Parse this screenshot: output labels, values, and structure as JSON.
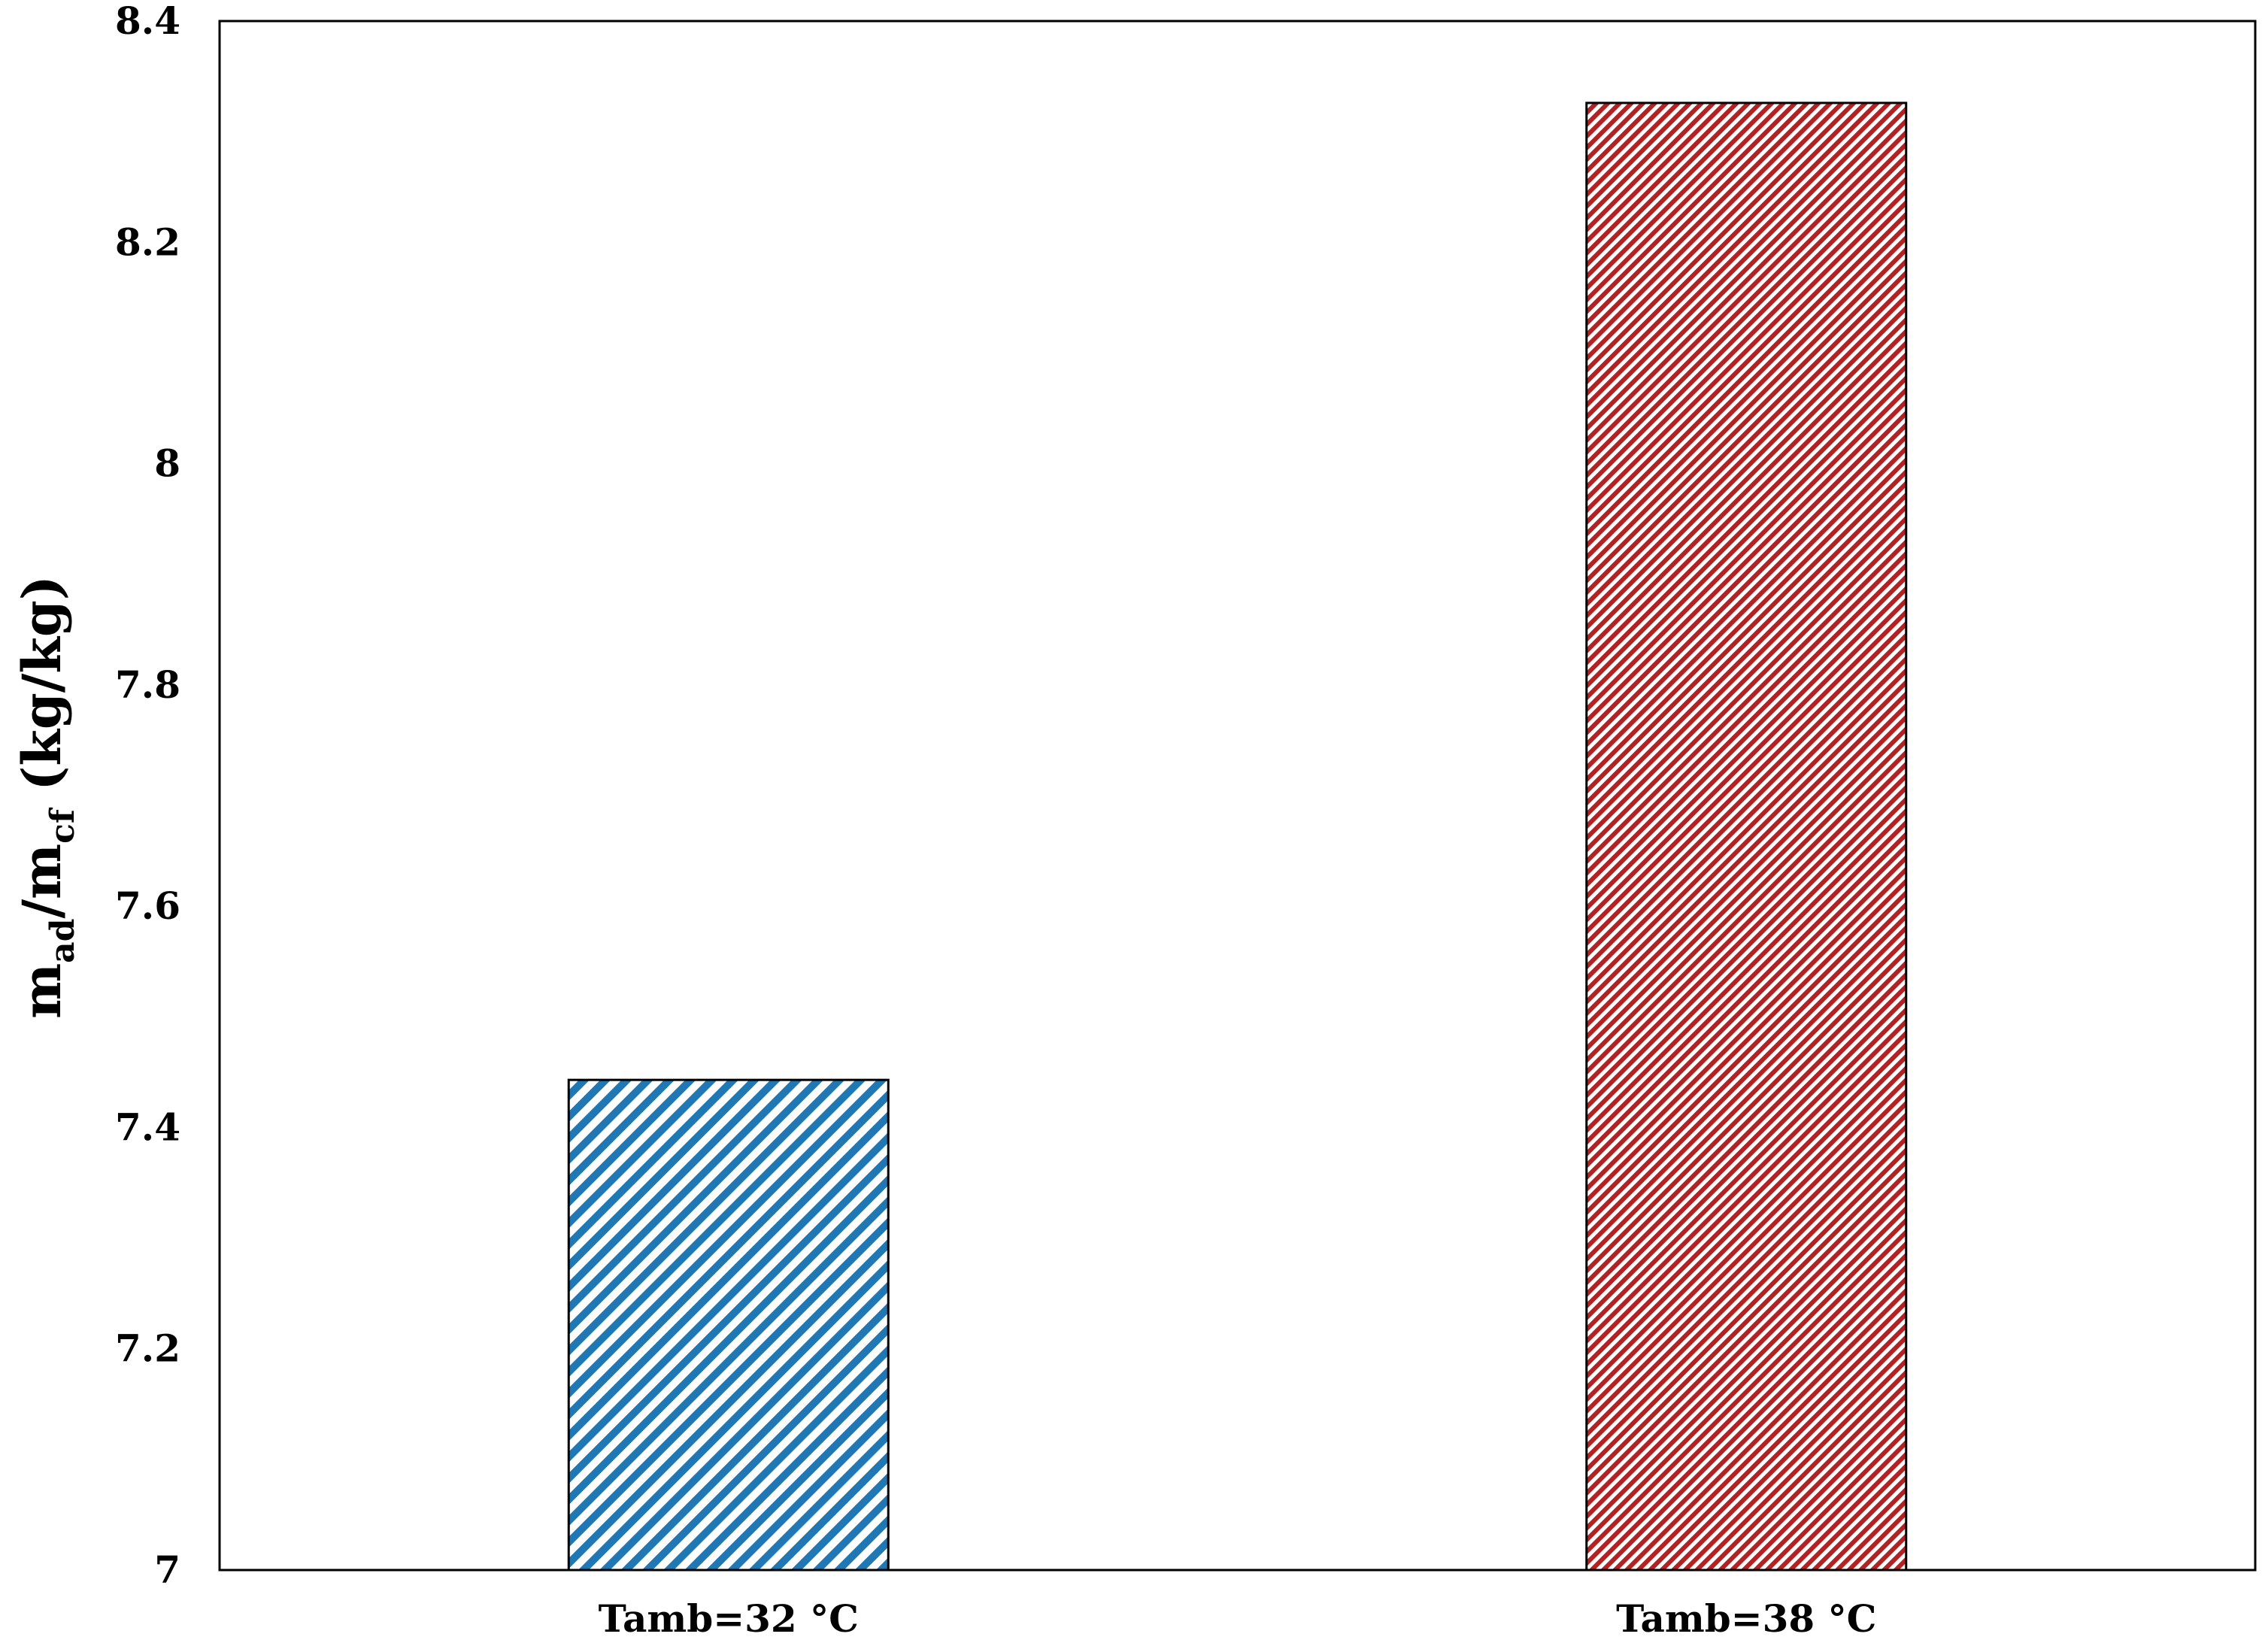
{
  "chart_data": {
    "type": "bar",
    "categories": [
      "Tamb=32 °C",
      "Tamb=38 °C"
    ],
    "values": [
      7.443,
      8.326
    ],
    "ylabel": {
      "main_1": "m",
      "sub_1": "ad",
      "slash": "/m",
      "sub_2": "cf",
      "unit": " (kg/kg)"
    },
    "xlabel": "",
    "ylim": [
      7,
      8.4
    ],
    "yticks": [
      7,
      7.2,
      7.4,
      7.6,
      7.8,
      8,
      8.2,
      8.4
    ],
    "ytick_labels": [
      "7",
      "7.2",
      "7.4",
      "7.6",
      "7.8",
      "8",
      "8.2",
      "8.4"
    ],
    "grid": false,
    "bar_styles": [
      {
        "color": "#1f77b4",
        "pattern": "diagonal-hatch"
      },
      {
        "color": "#b22222",
        "pattern": "fine-diagonal-hatch"
      }
    ]
  }
}
